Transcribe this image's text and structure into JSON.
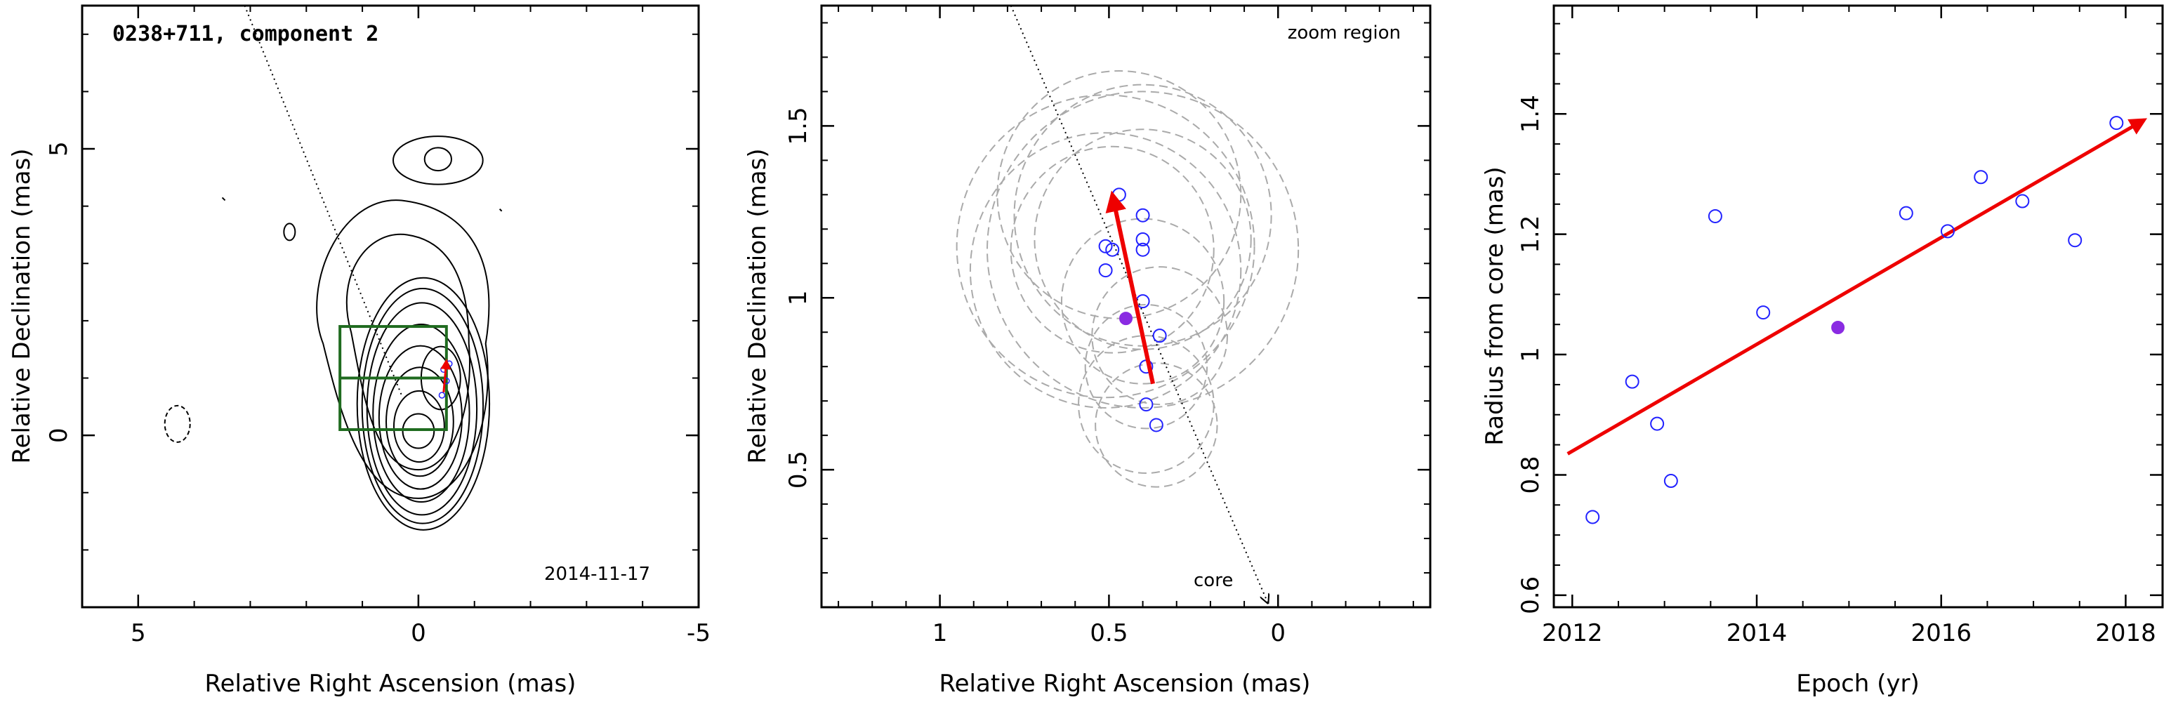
{
  "chart_data": [
    {
      "type": "scatter",
      "subtype": "contour-map",
      "title": "0238+711, component 2",
      "date_label": "2014-11-17",
      "xlabel": "Relative Right Ascension (mas)",
      "ylabel": "Relative Declination (mas)",
      "xlim": [
        6,
        -5
      ],
      "ylim": [
        -3,
        7.5
      ],
      "xticks": [
        5,
        0,
        -5
      ],
      "yticks": [
        0,
        5
      ],
      "contours": [
        {
          "name": "core-contours",
          "cx": 0,
          "cy": 0,
          "radii_x": [
            0.28,
            0.45,
            0.6,
            0.74,
            0.86,
            0.98,
            1.08,
            1.18
          ],
          "radii_y": [
            0.3,
            0.62,
            0.95,
            1.25,
            1.55,
            1.85,
            2.05,
            2.2
          ]
        },
        {
          "name": "knot-contour",
          "cx": -0.4,
          "cy": 1.0,
          "rx": 0.35,
          "ry": 0.55
        },
        {
          "name": "north-blob-contour",
          "cx": -0.35,
          "cy": 4.8,
          "rx": 0.8,
          "ry": 0.42
        },
        {
          "name": "north-blob-inner-contour",
          "cx": -0.35,
          "cy": 4.82,
          "rx": 0.24,
          "ry": 0.2
        }
      ],
      "zoom_box": {
        "x": [
          -0.5,
          1.4
        ],
        "y": [
          0.1,
          1.9
        ],
        "split_y": 1.0
      },
      "jet_direction_line": {
        "from": [
          3.1,
          7.5
        ],
        "to": [
          0.3,
          0.7
        ]
      },
      "colors": {
        "box": "#1f6b1f",
        "contour": "#000000",
        "points": "#2222ff",
        "arrow": "#ee0000"
      }
    },
    {
      "type": "scatter",
      "annotation": "zoom region",
      "core_label": "core",
      "xlabel": "Relative Right Ascension (mas)",
      "ylabel": "Relative Declination (mas)",
      "xlim": [
        1.35,
        -0.45
      ],
      "ylim": [
        0.1,
        1.85
      ],
      "xticks": [
        1,
        0.5,
        0
      ],
      "xtick_labels": [
        "1",
        "0.5",
        "0"
      ],
      "yticks": [
        0.5,
        1,
        1.5
      ],
      "ytick_labels": [
        "0.5",
        "1",
        "1.5"
      ],
      "points": [
        {
          "x": 0.47,
          "y": 1.3
        },
        {
          "x": 0.51,
          "y": 1.15
        },
        {
          "x": 0.49,
          "y": 1.14
        },
        {
          "x": 0.51,
          "y": 1.08
        },
        {
          "x": 0.4,
          "y": 1.24
        },
        {
          "x": 0.4,
          "y": 1.17
        },
        {
          "x": 0.4,
          "y": 1.14
        },
        {
          "x": 0.4,
          "y": 0.99
        },
        {
          "x": 0.35,
          "y": 0.89
        },
        {
          "x": 0.39,
          "y": 0.8
        },
        {
          "x": 0.39,
          "y": 0.69
        },
        {
          "x": 0.36,
          "y": 0.63
        }
      ],
      "mean_point": {
        "x": 0.45,
        "y": 0.94
      },
      "error_circles": [
        {
          "x": 0.47,
          "y": 1.3,
          "r": 0.36
        },
        {
          "x": 0.51,
          "y": 1.15,
          "r": 0.44
        },
        {
          "x": 0.49,
          "y": 1.14,
          "r": 0.3
        },
        {
          "x": 0.51,
          "y": 1.08,
          "r": 0.4
        },
        {
          "x": 0.4,
          "y": 1.24,
          "r": 0.38
        },
        {
          "x": 0.4,
          "y": 1.17,
          "r": 0.32
        },
        {
          "x": 0.4,
          "y": 1.14,
          "r": 0.46
        },
        {
          "x": 0.4,
          "y": 0.99,
          "r": 0.24
        },
        {
          "x": 0.35,
          "y": 0.89,
          "r": 0.2
        },
        {
          "x": 0.39,
          "y": 0.8,
          "r": 0.18
        },
        {
          "x": 0.39,
          "y": 0.69,
          "r": 0.2
        },
        {
          "x": 0.36,
          "y": 0.63,
          "r": 0.18
        }
      ],
      "motion_arrow": {
        "from": [
          0.37,
          0.75
        ],
        "to": [
          0.49,
          1.3
        ]
      },
      "core_direction_line": {
        "from": [
          0.79,
          1.85
        ],
        "to": [
          0.03,
          0.1
        ]
      },
      "colors": {
        "points": "#2222ff",
        "mean_point": "#8a2be2",
        "arrow": "#ee0000",
        "circles": "#aaaaaa"
      }
    },
    {
      "type": "scatter",
      "xlabel": "Epoch (yr)",
      "ylabel": "Radius from core (mas)",
      "xlim": [
        2011.8,
        2018.4
      ],
      "ylim": [
        0.58,
        1.58
      ],
      "xticks": [
        2012,
        2014,
        2016,
        2018
      ],
      "yticks": [
        0.6,
        0.8,
        1.0,
        1.2,
        1.4
      ],
      "ytick_labels": [
        "0.6",
        "0.8",
        "1",
        "1.2",
        "1.4"
      ],
      "points": [
        {
          "x": 2012.22,
          "y": 0.73
        },
        {
          "x": 2012.65,
          "y": 0.955
        },
        {
          "x": 2012.92,
          "y": 0.885
        },
        {
          "x": 2013.07,
          "y": 0.79
        },
        {
          "x": 2013.55,
          "y": 1.23
        },
        {
          "x": 2014.07,
          "y": 1.07
        },
        {
          "x": 2015.62,
          "y": 1.235
        },
        {
          "x": 2016.07,
          "y": 1.205
        },
        {
          "x": 2016.43,
          "y": 1.295
        },
        {
          "x": 2016.88,
          "y": 1.255
        },
        {
          "x": 2017.45,
          "y": 1.19
        },
        {
          "x": 2017.9,
          "y": 1.385
        }
      ],
      "mean_point": {
        "x": 2014.88,
        "y": 1.045
      },
      "fit_line": {
        "from": [
          2011.95,
          0.835
        ],
        "to": [
          2018.2,
          1.39
        ]
      },
      "colors": {
        "points": "#2222ff",
        "mean_point": "#8a2be2",
        "fit": "#ee0000"
      }
    }
  ]
}
